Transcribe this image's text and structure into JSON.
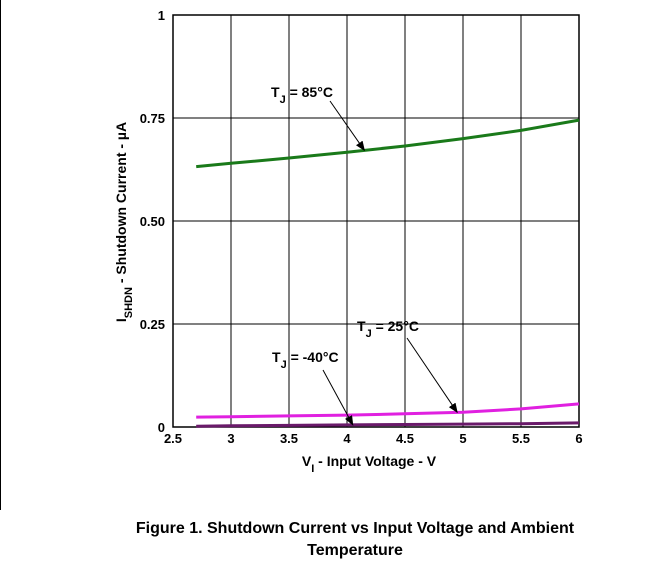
{
  "chart_data": {
    "type": "line",
    "xlabel": "V_I - Input Voltage - V",
    "ylabel": "I_SHDN - Shutdown Current - µA",
    "xlim": [
      2.5,
      6
    ],
    "ylim": [
      0,
      1
    ],
    "x_ticks": [
      "2.5",
      "3",
      "3.5",
      "4",
      "4.5",
      "5",
      "5.5",
      "6"
    ],
    "y_ticks": [
      "0",
      "0.25",
      "0.50",
      "0.75",
      "1"
    ],
    "grid": true,
    "series": [
      {
        "name": "TJ = 85°C",
        "color": "#1a7a1a",
        "x": [
          2.7,
          3,
          3.5,
          4,
          4.5,
          5,
          5.5,
          6
        ],
        "y": [
          0.632,
          0.64,
          0.653,
          0.667,
          0.682,
          0.7,
          0.72,
          0.745
        ]
      },
      {
        "name": "TJ = 25°C",
        "color": "#e020e0",
        "x": [
          2.7,
          3,
          3.5,
          4,
          4.5,
          5,
          5.5,
          6
        ],
        "y": [
          0.024,
          0.025,
          0.027,
          0.029,
          0.032,
          0.036,
          0.044,
          0.056
        ]
      },
      {
        "name": "TJ = -40°C",
        "color": "#6a1a6a",
        "x": [
          2.7,
          3,
          3.5,
          4,
          4.5,
          5,
          5.5,
          6
        ],
        "y": [
          0.002,
          0.003,
          0.004,
          0.005,
          0.006,
          0.007,
          0.008,
          0.01
        ]
      }
    ],
    "annotations": [
      {
        "label": "T",
        "sub": "J",
        "rest": " = 85°C",
        "series": 0,
        "at_x": 4.15
      },
      {
        "label": "T",
        "sub": "J",
        "rest": " = 25°C",
        "series": 1,
        "at_x": 4.95
      },
      {
        "label": "T",
        "sub": "J",
        "rest": " = -40°C",
        "series": 2,
        "at_x": 4.05
      }
    ]
  },
  "caption": {
    "line1": "Figure 1. Shutdown Current vs Input Voltage and Ambient",
    "line2": "Temperature"
  }
}
